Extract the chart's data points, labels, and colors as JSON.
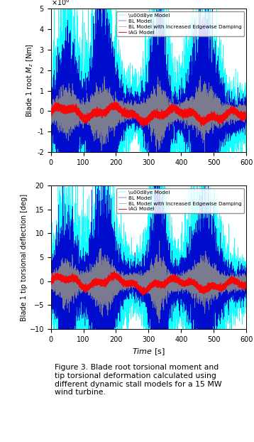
{
  "title": "Figure 3. Blade root torsional moment and\ntip torsional deformation calculated using\ndifferent dynamic stall models for a 15 MW\nwind turbine.",
  "xlabel": "$\\mathit{Time}$ [s]",
  "ylabel1": "Blade 1 root $M_z$ [Nm]",
  "ylabel2": "Blade 1 tip torsional deflection [deg]",
  "xlim": [
    0,
    600
  ],
  "ylim1": [
    -2000000.0,
    5000000.0
  ],
  "ylim2": [
    -10,
    20
  ],
  "yticks1": [
    -2000000,
    -1000000,
    0,
    1000000,
    2000000,
    3000000,
    4000000,
    5000000
  ],
  "yticks2": [
    -10,
    -5,
    0,
    5,
    10,
    15,
    20
  ],
  "xticks": [
    0,
    100,
    200,
    300,
    400,
    500,
    600
  ],
  "legend_labels": [
    "\\u00d8ye Model",
    "BL Model",
    "BL Model with Increased Edgewise Damping",
    "IAG Model"
  ],
  "colors": {
    "oye": "#00FFFF",
    "bl": "#0000CC",
    "bl_damp": "#888888",
    "iag": "#FF0000"
  },
  "event_centers": [
    50,
    160,
    330,
    470
  ],
  "background_color": "#ffffff",
  "seed": 42
}
